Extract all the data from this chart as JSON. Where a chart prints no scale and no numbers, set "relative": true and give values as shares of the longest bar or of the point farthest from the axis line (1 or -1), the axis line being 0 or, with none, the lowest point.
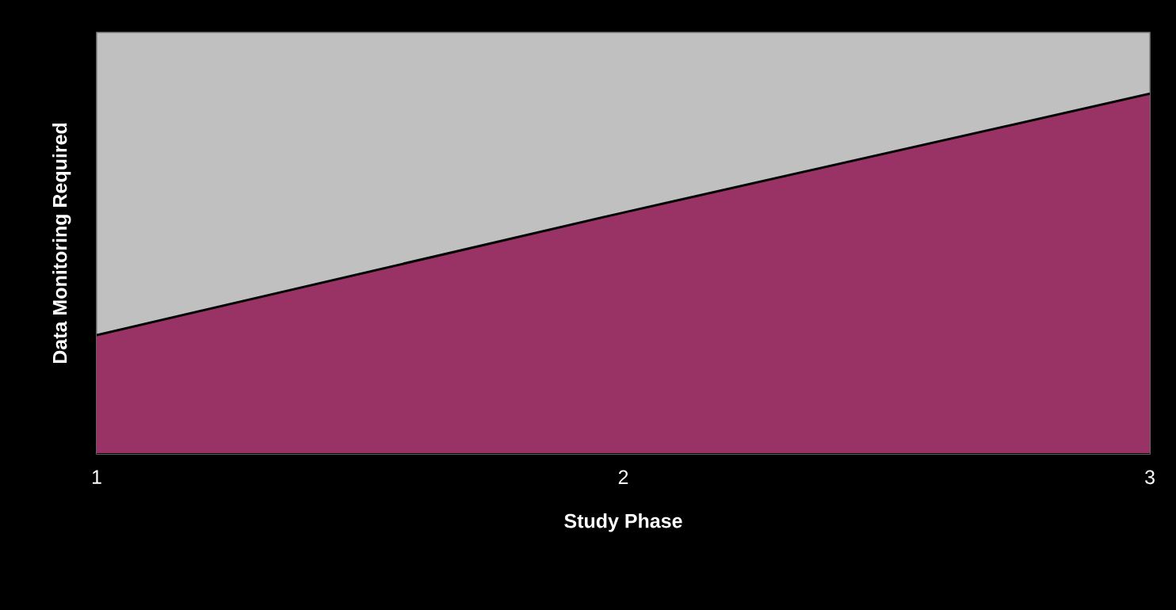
{
  "chart_data": {
    "type": "area",
    "relative": true,
    "xlabel": "Study Phase",
    "ylabel": "Data Monitoring Required",
    "categories": [
      "1",
      "2",
      "3"
    ],
    "series": [
      {
        "color": "#993366",
        "values": [
          0.33,
          0.67,
          1.0
        ]
      }
    ]
  }
}
